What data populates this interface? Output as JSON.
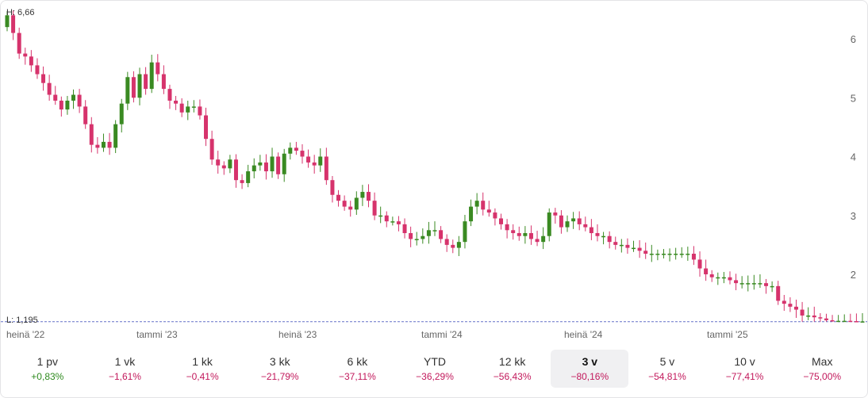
{
  "colors": {
    "up": "#3a8a22",
    "down": "#d6336c",
    "grid": "#6470c8",
    "axis_text": "#666666"
  },
  "high_label": "H: 6,66",
  "low_label": "L: 1,195",
  "chart_data": {
    "type": "candlestick",
    "y_ticks": [
      "6",
      "5",
      "4",
      "3",
      "2"
    ],
    "y_tick_values": [
      6,
      5,
      4,
      3,
      2
    ],
    "x_tick_labels": [
      "heinä '22",
      "tammi '23",
      "heinä '23",
      "tammi '24",
      "heinä '24",
      "tammi '25"
    ],
    "high": 6.66,
    "low": 1.195,
    "close_series": [
      6.4,
      6.1,
      5.75,
      5.7,
      5.55,
      5.4,
      5.25,
      5.05,
      4.95,
      4.8,
      4.95,
      5.05,
      4.85,
      4.55,
      4.2,
      4.15,
      4.25,
      4.15,
      4.55,
      4.9,
      5.35,
      5.0,
      5.4,
      5.15,
      5.6,
      5.4,
      5.15,
      4.95,
      4.9,
      4.75,
      4.85,
      4.85,
      4.7,
      4.3,
      3.95,
      3.85,
      3.8,
      3.95,
      3.6,
      3.55,
      3.75,
      3.85,
      3.9,
      3.75,
      4.0,
      3.7,
      4.05,
      4.15,
      4.1,
      4.0,
      3.9,
      3.85,
      4.0,
      3.6,
      3.35,
      3.25,
      3.15,
      3.1,
      3.3,
      3.4,
      3.25,
      3.0,
      3.0,
      2.9,
      2.9,
      2.85,
      2.7,
      2.6,
      2.6,
      2.65,
      2.75,
      2.75,
      2.6,
      2.5,
      2.45,
      2.55,
      2.9,
      3.15,
      3.25,
      3.1,
      3.05,
      2.95,
      2.85,
      2.75,
      2.7,
      2.65,
      2.7,
      2.6,
      2.55,
      2.65,
      3.05,
      3.0,
      2.8,
      2.9,
      2.95,
      2.85,
      2.8,
      2.7,
      2.65,
      2.65,
      2.55,
      2.5,
      2.5,
      2.45,
      2.45,
      2.4,
      2.35,
      2.35,
      2.35,
      2.35,
      2.35,
      2.35,
      2.35,
      2.35,
      2.25,
      2.1,
      2.0,
      1.95,
      1.95,
      1.95,
      1.9,
      1.85,
      1.85,
      1.85,
      1.85,
      1.85,
      1.8,
      1.8,
      1.55,
      1.5,
      1.45,
      1.4,
      1.3,
      1.3,
      1.27,
      1.25,
      1.22,
      1.21,
      1.21,
      1.21,
      1.205,
      1.2,
      1.2
    ]
  },
  "periods": [
    {
      "label": "1 pv",
      "change": "+0,83%",
      "dir": "pos"
    },
    {
      "label": "1 vk",
      "change": "−1,61%",
      "dir": "neg"
    },
    {
      "label": "1 kk",
      "change": "−0,41%",
      "dir": "neg"
    },
    {
      "label": "3 kk",
      "change": "−21,79%",
      "dir": "neg"
    },
    {
      "label": "6 kk",
      "change": "−37,11%",
      "dir": "neg"
    },
    {
      "label": "YTD",
      "change": "−36,29%",
      "dir": "neg"
    },
    {
      "label": "12 kk",
      "change": "−56,43%",
      "dir": "neg"
    },
    {
      "label": "3 v",
      "change": "−80,16%",
      "dir": "neg",
      "active": true
    },
    {
      "label": "5 v",
      "change": "−54,81%",
      "dir": "neg"
    },
    {
      "label": "10 v",
      "change": "−77,41%",
      "dir": "neg"
    },
    {
      "label": "Max",
      "change": "−75,00%",
      "dir": "neg"
    }
  ]
}
